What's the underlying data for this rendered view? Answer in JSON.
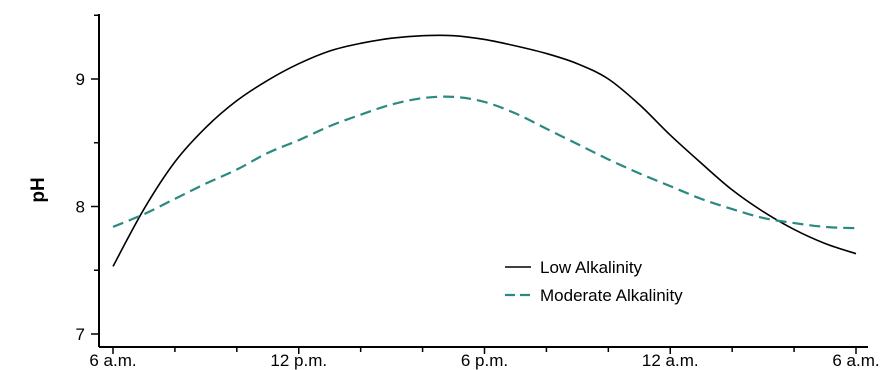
{
  "chart_data": {
    "type": "line",
    "title": "",
    "xlabel": "",
    "ylabel": "pH",
    "x_tick_labels": [
      "6 a.m.",
      "12 p.m.",
      "6 p.m.",
      "12 a.m.",
      "6 a.m."
    ],
    "y_tick_labels": [
      "7",
      "8",
      "9"
    ],
    "ylim": [
      6.97,
      9.5
    ],
    "grid": false,
    "legend_position": "bottom-right",
    "series": [
      {
        "name": "Low Alkalinity",
        "color": "#000000",
        "style": "solid",
        "x": [
          0,
          1,
          2,
          3,
          4,
          5,
          6,
          7,
          8,
          9,
          10,
          11,
          12,
          13,
          14,
          15,
          16,
          17,
          18,
          19,
          20,
          21,
          22,
          23,
          24
        ],
        "y": [
          7.53,
          7.98,
          8.35,
          8.62,
          8.83,
          8.99,
          9.12,
          9.22,
          9.28,
          9.32,
          9.34,
          9.34,
          9.31,
          9.26,
          9.2,
          9.12,
          9.0,
          8.8,
          8.56,
          8.34,
          8.13,
          7.96,
          7.82,
          7.71,
          7.63
        ]
      },
      {
        "name": "Moderate Alkalinity",
        "color": "#2a8a7f",
        "style": "dashed",
        "x": [
          0,
          1,
          2,
          3,
          4,
          5,
          6,
          7,
          8,
          9,
          10,
          11,
          12,
          13,
          14,
          15,
          16,
          17,
          18,
          19,
          20,
          21,
          22,
          23,
          24
        ],
        "y": [
          7.84,
          7.94,
          8.06,
          8.18,
          8.29,
          8.42,
          8.52,
          8.63,
          8.72,
          8.8,
          8.85,
          8.86,
          8.82,
          8.73,
          8.61,
          8.49,
          8.37,
          8.26,
          8.16,
          8.06,
          7.98,
          7.91,
          7.87,
          7.84,
          7.83
        ]
      }
    ]
  }
}
